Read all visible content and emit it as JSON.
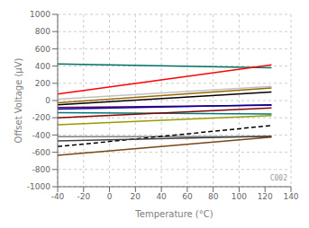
{
  "chart_data": {
    "type": "line",
    "xlabel": "Temperature (°C)",
    "ylabel": "Offset Voltage (µV)",
    "x": [
      -40,
      125
    ],
    "xlim": [
      -40,
      140
    ],
    "ylim": [
      -1000,
      1000
    ],
    "xticks": [
      -40,
      -20,
      0,
      20,
      40,
      60,
      80,
      100,
      120,
      140
    ],
    "yticks": [
      -1000,
      -800,
      -600,
      -400,
      -200,
      0,
      200,
      400,
      600,
      800,
      1000
    ],
    "grid": true,
    "annotation": "C002",
    "series": [
      {
        "color": "#007060",
        "values": [
          425,
          380
        ],
        "line_style": "solid"
      },
      {
        "color": "#FF0000",
        "values": [
          75,
          415
        ],
        "line_style": "solid"
      },
      {
        "color": "#C0C0C0",
        "values": [
          15,
          165
        ],
        "line_style": "solid"
      },
      {
        "color": "#996600",
        "values": [
          -25,
          145
        ],
        "line_style": "solid"
      },
      {
        "color": "#000000",
        "values": [
          -50,
          100
        ],
        "line_style": "solid"
      },
      {
        "color": "#660066",
        "values": [
          -80,
          -55
        ],
        "line_style": "solid"
      },
      {
        "color": "#000099",
        "values": [
          -100,
          -50
        ],
        "line_style": "solid"
      },
      {
        "color": "#007777",
        "values": [
          -140,
          -155
        ],
        "line_style": "solid"
      },
      {
        "color": "#880000",
        "values": [
          -200,
          -85
        ],
        "line_style": "solid"
      },
      {
        "color": "#999900",
        "values": [
          -280,
          -175
        ],
        "line_style": "solid"
      },
      {
        "color": "#808080",
        "values": [
          -420,
          -420
        ],
        "line_style": "solid"
      },
      {
        "color": "#000000",
        "values": [
          -535,
          -290
        ],
        "line_style": "dashed"
      },
      {
        "color": "#7B4513",
        "values": [
          -635,
          -425
        ],
        "line_style": "solid"
      },
      {
        "color": "#404040",
        "values": [
          -470,
          -415
        ],
        "line_style": "solid"
      }
    ]
  }
}
